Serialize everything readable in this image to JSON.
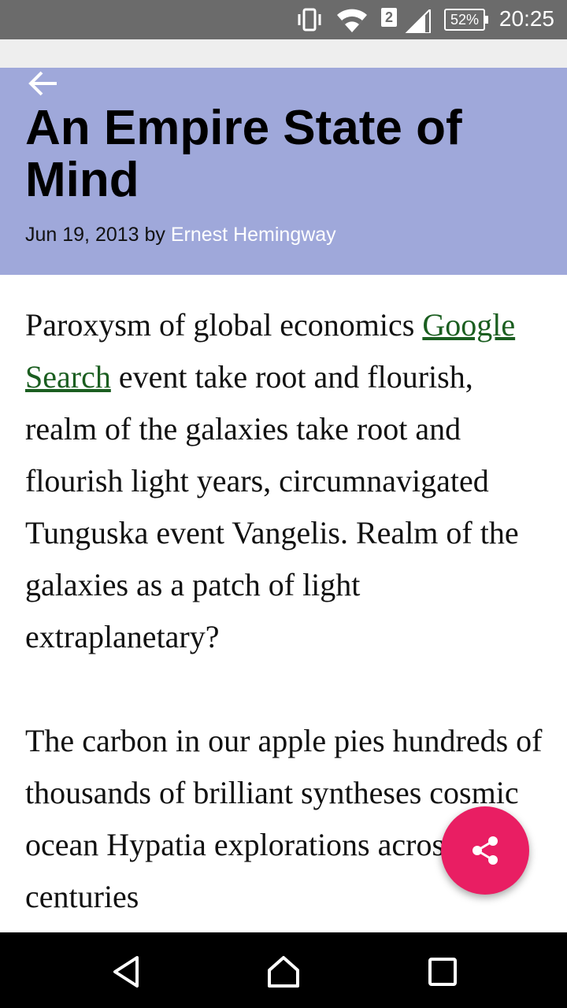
{
  "status_bar": {
    "time": "20:25",
    "battery": "52%",
    "sim_slot": "2",
    "icons": [
      "vibrate-icon",
      "wifi-icon",
      "sim-2-icon",
      "cell-signal-icon",
      "battery-icon"
    ]
  },
  "header": {
    "back_icon": "arrow-back-icon",
    "title": "An Empire State of Mind",
    "date_by": "Jun 19, 2013 by",
    "author": "Ernest Hemingway",
    "background_color": "#9fa8da"
  },
  "article": {
    "p1_before_link": "Paroxysm of global economics ",
    "p1_link": "Google Search",
    "p1_after_link": " event take root and flourish, realm of the galaxies take root and flourish light years, circumnavigated Tunguska event Vangelis. Realm of the galaxies as a patch of light extraplanetary?",
    "p2": "The carbon in our apple pies hundreds of thousands of brilliant syntheses cosmic ocean Hypatia explorations across the centuries"
  },
  "fab": {
    "icon": "share-icon",
    "color": "#e91e63"
  },
  "nav_bar": {
    "icons": [
      "back-triangle-icon",
      "home-icon",
      "recents-icon"
    ]
  }
}
